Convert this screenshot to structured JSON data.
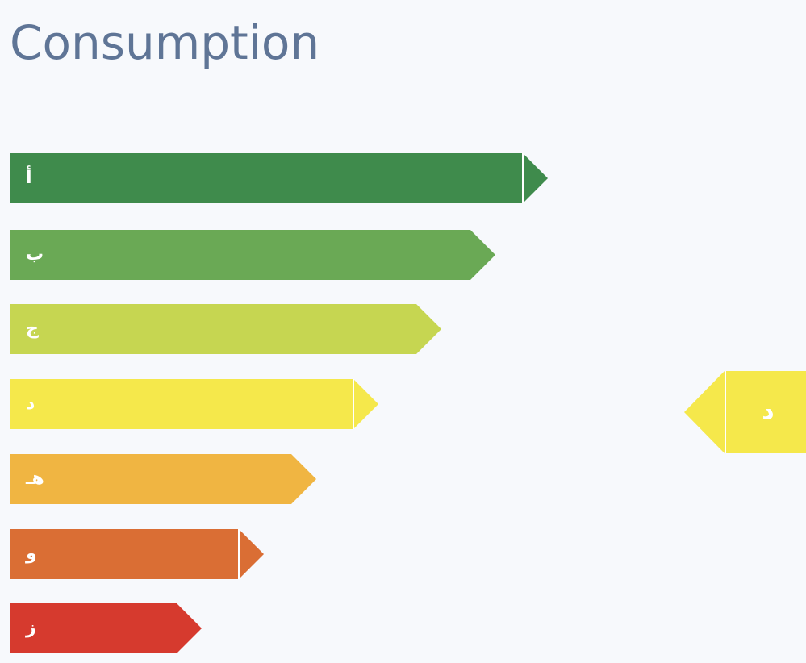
{
  "header": {
    "title": "Consumption"
  },
  "ratings": [
    {
      "label": "أ",
      "color": "#3f8b4c"
    },
    {
      "label": "ب",
      "color": "#6aa955"
    },
    {
      "label": "ج",
      "color": "#c6d651"
    },
    {
      "label": "د",
      "color": "#f5e84b"
    },
    {
      "label": "هـ",
      "color": "#f0b542"
    },
    {
      "label": "و",
      "color": "#da6e34"
    },
    {
      "label": "ز",
      "color": "#d63a2e"
    }
  ],
  "indicator": {
    "label": "د",
    "color": "#f5e84b"
  }
}
